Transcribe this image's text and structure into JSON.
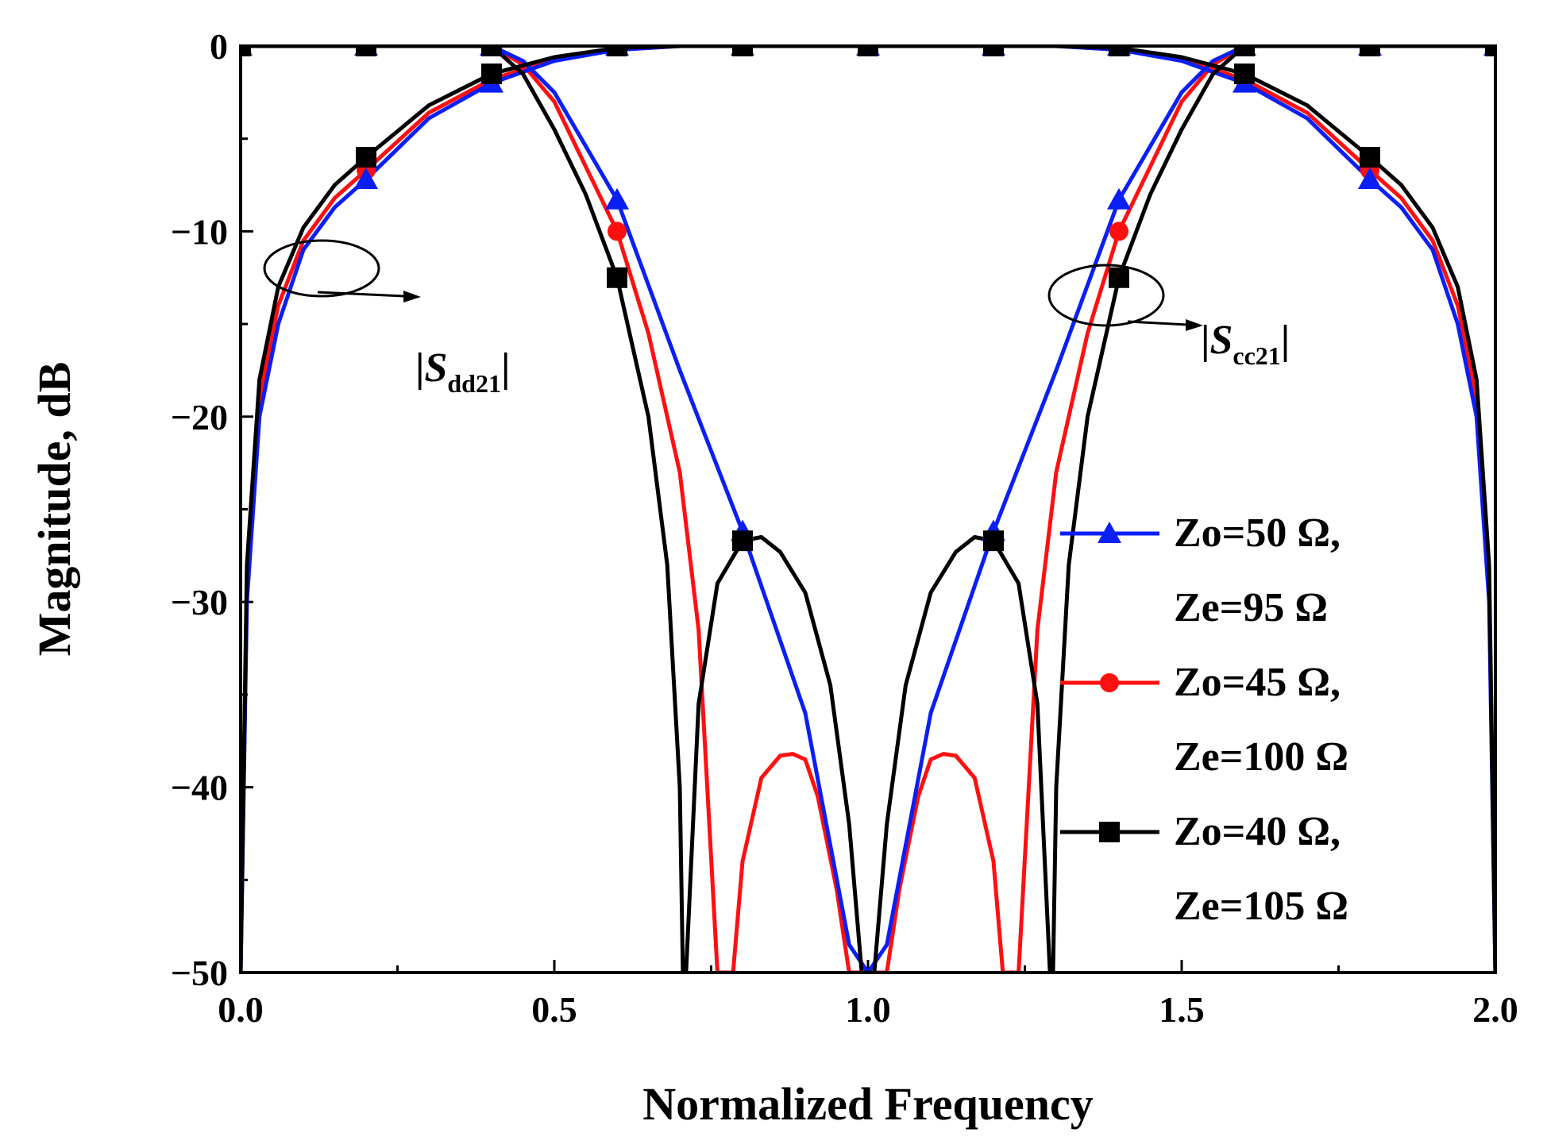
{
  "chart_data": {
    "type": "line",
    "title": "",
    "xlabel": "Normalized Frequency",
    "ylabel": "Magnitude, dB",
    "xlim": [
      0.0,
      2.0
    ],
    "ylim": [
      -50,
      0
    ],
    "xticks": [
      "0.0",
      "0.5",
      "1.0",
      "1.5",
      "2.0"
    ],
    "yticks": [
      "0",
      "−10",
      "−20",
      "−30",
      "−40",
      "−50"
    ],
    "grid": false,
    "legend_position": "right",
    "annotations": [
      {
        "prefix": "|",
        "symbol": "S",
        "subscript": "dd21",
        "suffix": "|",
        "points_to": "differential-mode transmission curves"
      },
      {
        "prefix": "|",
        "symbol": "S",
        "subscript": "cc21",
        "suffix": "|",
        "points_to": "common-mode transmission curves"
      }
    ],
    "series": [
      {
        "name": "Zo=50 Ω, Ze=95 Ω",
        "legend_lines": [
          "Zo=50 Ω,",
          "Ze=95 Ω"
        ],
        "color": "#0b1ff5",
        "marker": "triangle",
        "dd21": {
          "x": [
            0.0,
            0.01,
            0.03,
            0.06,
            0.1,
            0.15,
            0.2,
            0.3,
            0.4,
            0.5,
            0.6,
            0.7,
            0.8,
            0.9,
            1.0,
            1.1,
            1.2,
            1.3,
            1.4,
            1.5,
            1.6,
            1.7,
            1.8,
            1.85,
            1.9,
            1.94,
            1.97,
            1.99,
            2.0
          ],
          "y": [
            -50,
            -30,
            -20,
            -15,
            -11,
            -8.7,
            -7.2,
            -3.9,
            -2.0,
            -0.8,
            -0.2,
            0,
            0,
            0,
            0,
            0,
            0,
            0,
            -0.2,
            -0.8,
            -2.0,
            -3.9,
            -7.2,
            -8.7,
            -11,
            -15,
            -20,
            -30,
            -50
          ]
        },
        "cc21": {
          "x": [
            0.0,
            0.2,
            0.4,
            0.45,
            0.5,
            0.6,
            0.7,
            0.8,
            0.9,
            0.97,
            1.0,
            1.03,
            1.1,
            1.2,
            1.3,
            1.4,
            1.5,
            1.55,
            1.6,
            1.8,
            2.0
          ],
          "y": [
            0,
            0,
            0,
            -0.8,
            -2.5,
            -8.3,
            -17.5,
            -26.2,
            -36.0,
            -48.5,
            -50,
            -48.5,
            -36.0,
            -26.2,
            -17.5,
            -8.3,
            -2.5,
            -0.8,
            0,
            0,
            0
          ]
        },
        "markers": {
          "x": [
            0.0,
            0.2,
            0.4,
            0.6,
            0.8,
            1.0,
            1.2,
            1.4,
            1.6,
            1.8,
            2.0,
            0.2,
            0.4,
            0.6,
            0.8,
            1.2,
            1.4,
            1.6,
            1.8
          ],
          "y": [
            0,
            0,
            0,
            0,
            0,
            0,
            0,
            0,
            0,
            0,
            0,
            -7.2,
            -2.0,
            -8.3,
            -26.2,
            -26.2,
            -8.3,
            -2.0,
            -7.2
          ]
        }
      },
      {
        "name": "Zo=45 Ω, Ze=100 Ω",
        "legend_lines": [
          "Zo=45 Ω,",
          "Ze=100 Ω"
        ],
        "color": "#ff1010",
        "marker": "circle",
        "dd21": {
          "x": [
            0.0,
            0.01,
            0.03,
            0.06,
            0.1,
            0.15,
            0.2,
            0.3,
            0.4,
            0.5,
            0.6,
            0.7,
            0.8,
            0.9,
            1.0,
            1.1,
            1.2,
            1.3,
            1.4,
            1.5,
            1.6,
            1.7,
            1.8,
            1.85,
            1.9,
            1.94,
            1.97,
            1.99,
            2.0
          ],
          "y": [
            -50,
            -29,
            -19,
            -14,
            -10.5,
            -8.2,
            -6.7,
            -3.6,
            -1.8,
            -0.7,
            -0.2,
            0,
            0,
            0,
            0,
            0,
            0,
            0,
            -0.2,
            -0.7,
            -1.8,
            -3.6,
            -6.7,
            -8.2,
            -10.5,
            -14,
            -19,
            -29,
            -50
          ]
        },
        "cc21": {
          "x": [
            0.0,
            0.2,
            0.4,
            0.45,
            0.5,
            0.6,
            0.65,
            0.7,
            0.73,
            0.76,
            0.785,
            0.8,
            0.83,
            0.86,
            0.88,
            0.9,
            0.92,
            0.95,
            0.97,
            0.985,
            1.0,
            1.015,
            1.03,
            1.05,
            1.08,
            1.1,
            1.12,
            1.14,
            1.17,
            1.2,
            1.215,
            1.24,
            1.27,
            1.3,
            1.35,
            1.4,
            1.5,
            1.55,
            1.6,
            1.8,
            2.0
          ],
          "y": [
            0,
            0,
            0,
            -1.0,
            -3.0,
            -10.0,
            -15.5,
            -23.0,
            -31.5,
            -50,
            -50,
            -44.0,
            -39.5,
            -38.3,
            -38.2,
            -38.5,
            -40.5,
            -45.5,
            -50,
            -50,
            -50,
            -50,
            -50,
            -45.5,
            -40.5,
            -38.5,
            -38.2,
            -38.3,
            -39.5,
            -44.0,
            -50,
            -50,
            -31.5,
            -23.0,
            -15.5,
            -10.0,
            -3.0,
            -1.0,
            0,
            0,
            0
          ]
        },
        "markers": {
          "x": [
            0.0,
            0.2,
            0.4,
            0.6,
            0.8,
            1.0,
            1.2,
            1.4,
            1.6,
            1.8,
            2.0,
            0.2,
            0.4,
            0.6,
            1.4,
            1.6,
            1.8
          ],
          "y": [
            0,
            0,
            0,
            0,
            0,
            0,
            0,
            0,
            0,
            0,
            0,
            -6.7,
            -1.8,
            -10.0,
            -10.0,
            -1.8,
            -6.7
          ]
        }
      },
      {
        "name": "Zo=40 Ω, Ze=105 Ω",
        "legend_lines": [
          "Zo=40 Ω,",
          "Ze=105 Ω"
        ],
        "color": "#000000",
        "marker": "square",
        "dd21": {
          "x": [
            0.0,
            0.01,
            0.03,
            0.06,
            0.1,
            0.15,
            0.2,
            0.3,
            0.4,
            0.5,
            0.6,
            0.7,
            0.8,
            0.9,
            1.0,
            1.1,
            1.2,
            1.3,
            1.4,
            1.5,
            1.6,
            1.7,
            1.8,
            1.85,
            1.9,
            1.94,
            1.97,
            1.99,
            2.0
          ],
          "y": [
            -50,
            -28,
            -18,
            -13,
            -9.8,
            -7.5,
            -6.0,
            -3.2,
            -1.5,
            -0.6,
            -0.1,
            0,
            0,
            0,
            0,
            0,
            0,
            0,
            -0.1,
            -0.6,
            -1.5,
            -3.2,
            -6.0,
            -7.5,
            -9.8,
            -13,
            -18,
            -28,
            -50
          ]
        },
        "cc21": {
          "x": [
            0.0,
            0.2,
            0.4,
            0.45,
            0.5,
            0.55,
            0.6,
            0.65,
            0.68,
            0.7,
            0.705,
            0.71,
            0.73,
            0.76,
            0.8,
            0.83,
            0.86,
            0.9,
            0.94,
            0.97,
            0.99,
            1.0,
            1.01,
            1.03,
            1.06,
            1.1,
            1.14,
            1.17,
            1.2,
            1.24,
            1.27,
            1.29,
            1.295,
            1.3,
            1.32,
            1.35,
            1.4,
            1.45,
            1.5,
            1.55,
            1.6,
            1.8,
            2.0
          ],
          "y": [
            0,
            0,
            0,
            -1.5,
            -4.5,
            -8.0,
            -12.5,
            -20.0,
            -28.0,
            -40.0,
            -50,
            -50,
            -35.5,
            -29.0,
            -26.7,
            -26.5,
            -27.3,
            -29.5,
            -34.5,
            -42.0,
            -50,
            -50,
            -50,
            -42.0,
            -34.5,
            -29.5,
            -27.3,
            -26.5,
            -26.7,
            -29.0,
            -35.5,
            -50,
            -50,
            -40.0,
            -28.0,
            -20.0,
            -12.5,
            -8.0,
            -4.5,
            -1.5,
            0,
            0,
            0
          ]
        },
        "markers": {
          "x": [
            0.0,
            0.2,
            0.4,
            0.6,
            0.8,
            1.0,
            1.2,
            1.4,
            1.6,
            1.8,
            2.0,
            0.2,
            0.4,
            0.6,
            0.8,
            1.2,
            1.4,
            1.6,
            1.8
          ],
          "y": [
            0,
            0,
            0,
            0,
            0,
            0,
            0,
            0,
            0,
            0,
            0,
            -6.0,
            -1.5,
            -12.5,
            -26.7,
            -26.7,
            -12.5,
            -1.5,
            -6.0
          ]
        }
      }
    ]
  }
}
